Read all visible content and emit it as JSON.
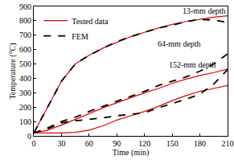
{
  "chart_data": {
    "type": "line",
    "x_label": "Time (min)",
    "y_label": "Temperature (°C)",
    "x": [
      0,
      15,
      30,
      45,
      60,
      75,
      90,
      105,
      120,
      135,
      150,
      165,
      180,
      195,
      210
    ],
    "series": [
      {
        "name": "Tested data",
        "color": "#e00000",
        "line_style": "solid",
        "values": [
          20,
          200,
          380,
          500,
          560,
          610,
          650,
          690,
          720,
          750,
          775,
          795,
          810,
          825,
          835
        ]
      },
      {
        "name": "FEM",
        "color": "#000000",
        "line_style": "dash",
        "values": [
          20,
          200,
          380,
          500,
          560,
          610,
          655,
          690,
          720,
          750,
          770,
          795,
          810,
          805,
          790
        ]
      },
      {
        "name": "Tested data",
        "color": "#e00000",
        "line_style": "solid",
        "values": [
          20,
          40,
          75,
          115,
          155,
          195,
          230,
          265,
          300,
          330,
          365,
          395,
          420,
          440,
          465
        ]
      },
      {
        "name": "FEM",
        "color": "#000000",
        "line_style": "dash",
        "values": [
          20,
          55,
          100,
          130,
          170,
          205,
          240,
          275,
          310,
          350,
          380,
          410,
          450,
          500,
          570
        ]
      },
      {
        "name": "Tested data",
        "color": "#e00000",
        "line_style": "solid",
        "values": [
          20,
          20,
          20,
          25,
          40,
          70,
          110,
          140,
          170,
          205,
          245,
          280,
          310,
          330,
          350
        ]
      },
      {
        "name": "FEM",
        "color": "#000000",
        "line_style": "dash",
        "values": [
          20,
          50,
          90,
          105,
          115,
          125,
          140,
          150,
          160,
          195,
          225,
          255,
          290,
          360,
          460
        ]
      }
    ],
    "annotations": [
      "13-mm depth",
      "64-mm depth",
      "152-mm depth"
    ],
    "xlim": [
      0,
      210
    ],
    "xticks": [
      0,
      30,
      60,
      90,
      120,
      150,
      180,
      210
    ],
    "ylim": [
      0,
      900
    ],
    "yticks": [
      0,
      100,
      200,
      300,
      400,
      500,
      600,
      700,
      800,
      900
    ],
    "grid": false,
    "legend": "top-left"
  }
}
